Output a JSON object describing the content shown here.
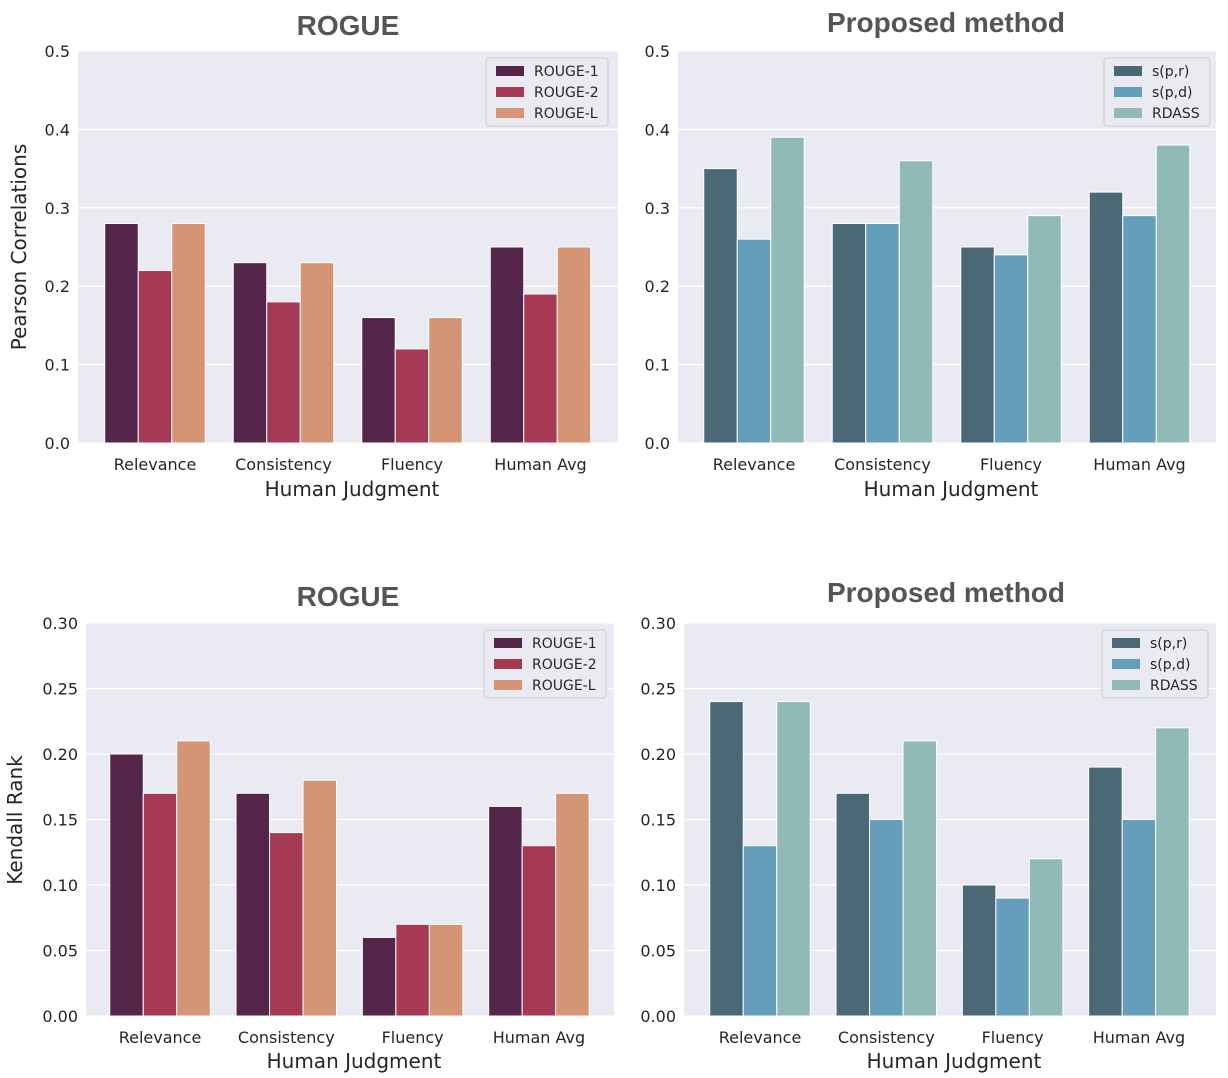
{
  "colors": {
    "rouge": [
      "#55264a",
      "#a63a55",
      "#d69476"
    ],
    "proposed": [
      "#4a6875",
      "#659eba",
      "#90bab7"
    ]
  },
  "chart_data": [
    {
      "type": "bar",
      "title": "ROGUE",
      "xlabel": "Human Judgment",
      "ylabel": "Pearson Correlations",
      "ylim": [
        0,
        0.5
      ],
      "yticks": [
        "0.0",
        "0.1",
        "0.2",
        "0.3",
        "0.4",
        "0.5"
      ],
      "ytick_values": [
        0,
        0.1,
        0.2,
        0.3,
        0.4,
        0.5
      ],
      "legend_position": "top-right",
      "categories": [
        "Relevance",
        "Consistency",
        "Fluency",
        "Human Avg"
      ],
      "series": [
        {
          "name": "ROUGE-1",
          "values": [
            0.28,
            0.23,
            0.16,
            0.25
          ]
        },
        {
          "name": "ROUGE-2",
          "values": [
            0.22,
            0.18,
            0.12,
            0.19
          ]
        },
        {
          "name": "ROUGE-L",
          "values": [
            0.28,
            0.23,
            0.16,
            0.25
          ]
        }
      ]
    },
    {
      "type": "bar",
      "title": "Proposed method",
      "xlabel": "Human Judgment",
      "ylabel": "",
      "ylim": [
        0,
        0.5
      ],
      "yticks": [
        "0.0",
        "0.1",
        "0.2",
        "0.3",
        "0.4",
        "0.5"
      ],
      "ytick_values": [
        0,
        0.1,
        0.2,
        0.3,
        0.4,
        0.5
      ],
      "legend_position": "top-right",
      "categories": [
        "Relevance",
        "Consistency",
        "Fluency",
        "Human Avg"
      ],
      "series": [
        {
          "name": "s(p,r)",
          "values": [
            0.35,
            0.28,
            0.25,
            0.32
          ]
        },
        {
          "name": "s(p,d)",
          "values": [
            0.26,
            0.28,
            0.24,
            0.29
          ]
        },
        {
          "name": "RDASS",
          "values": [
            0.39,
            0.36,
            0.29,
            0.38
          ]
        }
      ]
    },
    {
      "type": "bar",
      "title": "ROGUE",
      "xlabel": "Human Judgment",
      "ylabel": "Kendall Rank",
      "ylim": [
        0,
        0.3
      ],
      "yticks": [
        "0.00",
        "0.05",
        "0.10",
        "0.15",
        "0.20",
        "0.25",
        "0.30"
      ],
      "ytick_values": [
        0,
        0.05,
        0.1,
        0.15,
        0.2,
        0.25,
        0.3
      ],
      "legend_position": "top-right",
      "categories": [
        "Relevance",
        "Consistency",
        "Fluency",
        "Human Avg"
      ],
      "series": [
        {
          "name": "ROUGE-1",
          "values": [
            0.2,
            0.17,
            0.06,
            0.16
          ]
        },
        {
          "name": "ROUGE-2",
          "values": [
            0.17,
            0.14,
            0.07,
            0.13
          ]
        },
        {
          "name": "ROUGE-L",
          "values": [
            0.21,
            0.18,
            0.07,
            0.17
          ]
        }
      ]
    },
    {
      "type": "bar",
      "title": "Proposed method",
      "xlabel": "Human Judgment",
      "ylabel": "",
      "ylim": [
        0,
        0.3
      ],
      "yticks": [
        "0.00",
        "0.05",
        "0.10",
        "0.15",
        "0.20",
        "0.25",
        "0.30"
      ],
      "ytick_values": [
        0,
        0.05,
        0.1,
        0.15,
        0.2,
        0.25,
        0.3
      ],
      "legend_position": "top-right",
      "categories": [
        "Relevance",
        "Consistency",
        "Fluency",
        "Human Avg"
      ],
      "series": [
        {
          "name": "s(p,r)",
          "values": [
            0.24,
            0.17,
            0.1,
            0.19
          ]
        },
        {
          "name": "s(p,d)",
          "values": [
            0.13,
            0.15,
            0.09,
            0.15
          ]
        },
        {
          "name": "RDASS",
          "values": [
            0.24,
            0.21,
            0.12,
            0.22
          ]
        }
      ]
    }
  ]
}
